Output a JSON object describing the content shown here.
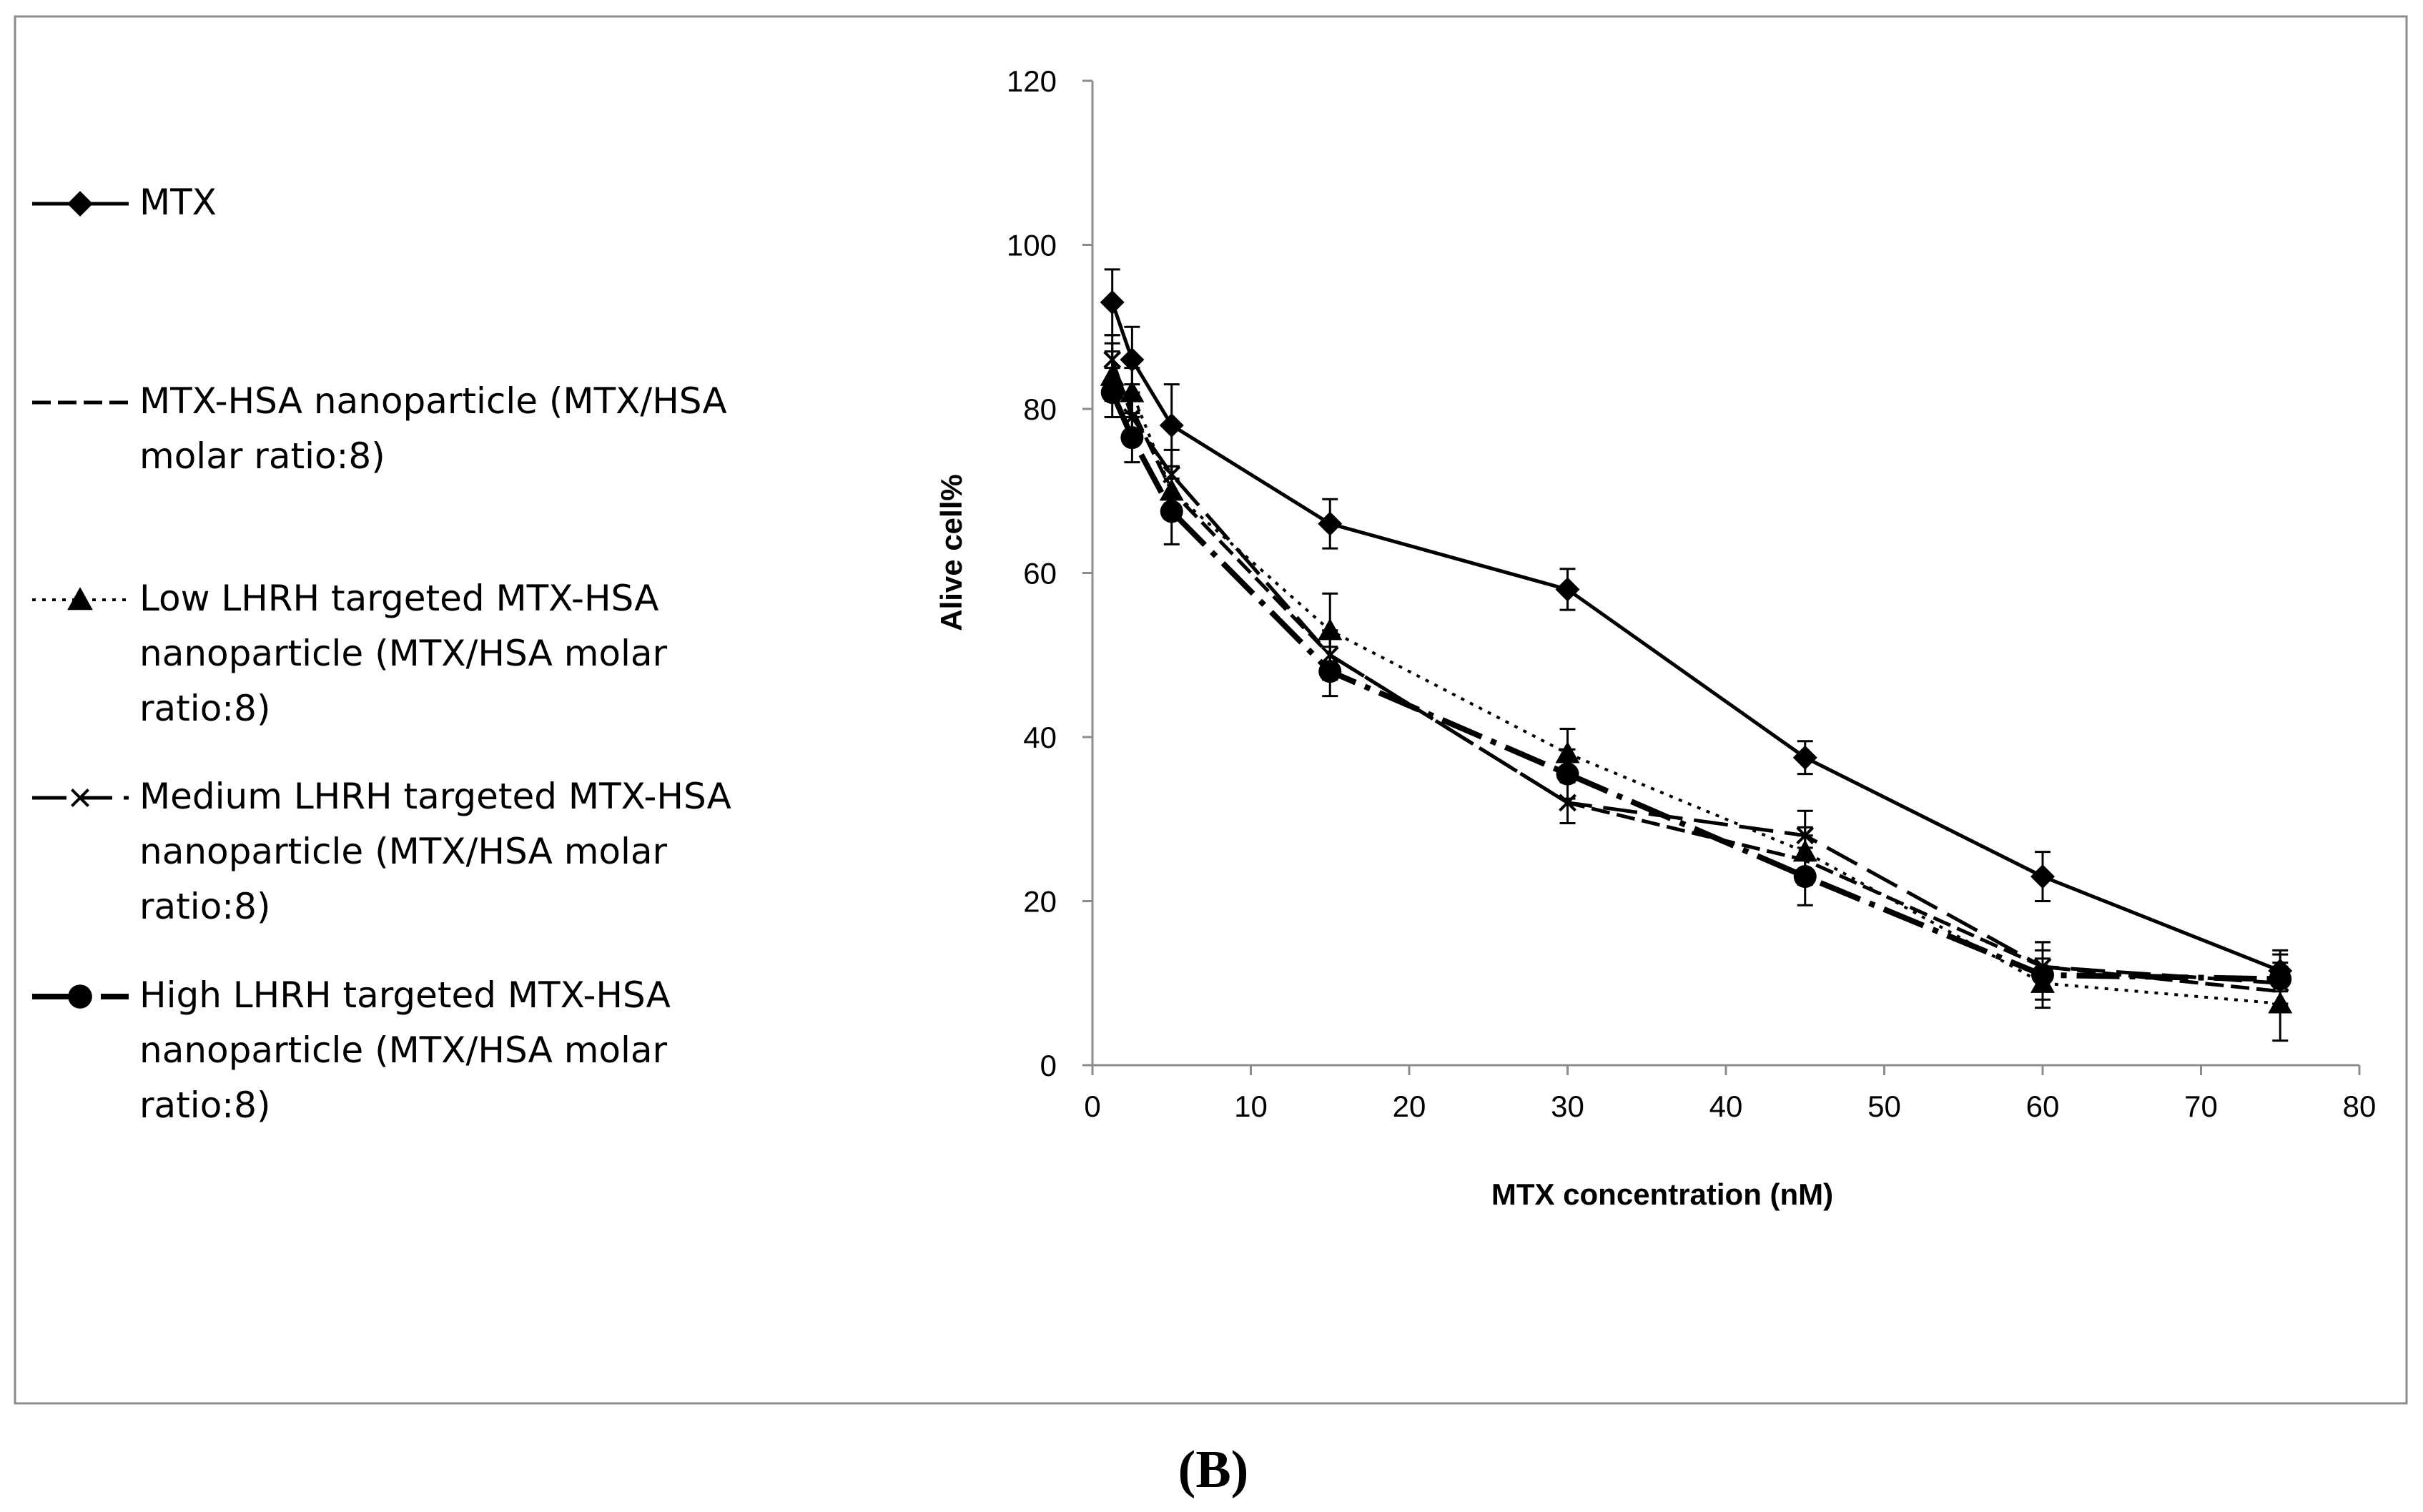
{
  "panel_label": "(B)",
  "chart_data": {
    "type": "line",
    "title": "",
    "xlabel": "MTX concentration (nM)",
    "ylabel": "Alive cell%",
    "xlim": [
      0,
      80
    ],
    "ylim": [
      0,
      120
    ],
    "xticks": [
      0,
      10,
      20,
      30,
      40,
      50,
      60,
      70,
      80
    ],
    "yticks": [
      0,
      20,
      40,
      60,
      80,
      100,
      120
    ],
    "grid": false,
    "legend_position": "left",
    "x": [
      1.25,
      2.5,
      5,
      15,
      30,
      45,
      60,
      75
    ],
    "series": [
      {
        "name": "MTX",
        "legend_lines": [
          "MTX"
        ],
        "marker": "diamond",
        "line_style": "solid",
        "values": [
          93,
          86,
          78,
          66,
          58,
          37.5,
          23,
          11.5
        ],
        "errors": [
          4,
          4,
          5,
          3,
          2.5,
          2,
          3,
          2.5
        ]
      },
      {
        "name": "MTX-HSA nanoparticle (MTX/HSA molar ratio:8)",
        "legend_lines": [
          "MTX-HSA nanoparticle (MTX/HSA",
          "molar ratio:8)"
        ],
        "marker": "none",
        "line_style": "dashed",
        "values": [
          85,
          80,
          70,
          50,
          32,
          25,
          12,
          9
        ],
        "errors": [
          3,
          3,
          3,
          3,
          2.5,
          3,
          3,
          2.5
        ]
      },
      {
        "name": "Low LHRH targeted MTX-HSA nanoparticle (MTX/HSA molar ratio:8)",
        "legend_lines": [
          "Low LHRH targeted MTX-HSA",
          "nanoparticle (MTX/HSA molar",
          "ratio:8)"
        ],
        "marker": "triangle",
        "line_style": "dotted",
        "values": [
          84,
          82,
          70,
          53,
          38,
          26,
          10,
          7.5
        ],
        "errors": [
          3,
          3,
          3,
          4.5,
          3,
          3,
          3,
          4.5
        ]
      },
      {
        "name": "Medium LHRH targeted MTX-HSA nanoparticle (MTX/HSA molar ratio:8)",
        "legend_lines": [
          "Medium LHRH targeted MTX-HSA",
          "nanoparticle (MTX/HSA molar",
          "ratio:8)"
        ],
        "marker": "x",
        "line_style": "long-dash",
        "values": [
          86,
          79,
          72,
          50,
          32,
          28,
          12,
          10
        ],
        "errors": [
          3,
          3,
          3,
          3,
          2.5,
          3,
          3,
          2.5
        ]
      },
      {
        "name": "High LHRH targeted MTX-HSA nanoparticle (MTX/HSA molar ratio:8)",
        "legend_lines": [
          "High LHRH targeted MTX-HSA",
          "nanoparticle (MTX/HSA molar",
          "ratio:8)"
        ],
        "marker": "circle",
        "line_style": "dash-dot",
        "values": [
          82,
          76.5,
          67.5,
          48,
          35.5,
          23,
          11,
          10.5
        ],
        "errors": [
          3,
          3,
          4,
          3,
          3,
          3.5,
          3,
          3
        ]
      }
    ]
  }
}
